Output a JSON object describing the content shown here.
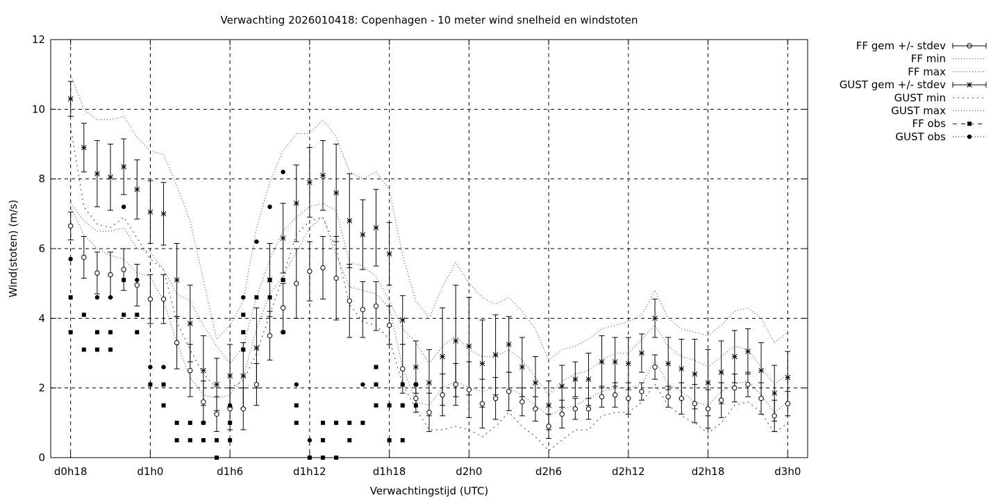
{
  "chart_data": {
    "type": "scatter",
    "title": "Verwachting 2026010418: Copenhagen - 10 meter wind snelheid en windstoten",
    "xlabel": "Verwachtingstijd (UTC)",
    "ylabel": "Wind(stoten) (m/s)",
    "ylim": [
      0,
      12
    ],
    "xlim": [
      -1.5,
      55.5
    ],
    "y_ticks": [
      0,
      2,
      4,
      6,
      8,
      10,
      12
    ],
    "x_tick_hours": [
      0,
      6,
      12,
      18,
      24,
      30,
      36,
      42,
      48,
      54
    ],
    "x_tick_labels": [
      "d0h18",
      "d1h0",
      "d1h6",
      "d1h12",
      "d1h18",
      "d2h0",
      "d2h6",
      "d2h12",
      "d2h18",
      "d3h0"
    ],
    "grid": true,
    "legend_position": "outside-top-right",
    "legend": [
      "FF gem +/- stdev",
      "FF min",
      "FF max",
      "GUST gem +/- stdev",
      "GUST min",
      "GUST max",
      "FF obs",
      "GUST obs"
    ],
    "x_hours": [
      0,
      1,
      2,
      3,
      4,
      5,
      6,
      7,
      8,
      9,
      10,
      11,
      12,
      13,
      14,
      15,
      16,
      17,
      18,
      19,
      20,
      21,
      22,
      23,
      24,
      25,
      26,
      27,
      28,
      29,
      30,
      31,
      32,
      33,
      34,
      35,
      36,
      37,
      38,
      39,
      40,
      41,
      42,
      43,
      44,
      45,
      46,
      47,
      48,
      49,
      50,
      51,
      52,
      53,
      54
    ],
    "series": [
      {
        "name": "FF gem +/- stdev",
        "mean": [
          6.65,
          5.75,
          5.3,
          5.25,
          5.4,
          4.95,
          4.55,
          4.55,
          3.3,
          2.5,
          1.6,
          1.25,
          1.4,
          1.4,
          2.1,
          3.5,
          4.3,
          5.0,
          5.35,
          5.45,
          5.15,
          4.5,
          4.25,
          4.35,
          3.8,
          2.55,
          1.7,
          1.3,
          1.8,
          2.1,
          1.95,
          1.55,
          1.7,
          1.9,
          1.6,
          1.4,
          0.9,
          1.25,
          1.4,
          1.4,
          1.75,
          1.8,
          1.7,
          1.9,
          2.6,
          1.75,
          1.7,
          1.55,
          1.4,
          1.65,
          2.0,
          2.1,
          1.7,
          1.2,
          1.55
        ],
        "stdev": [
          0.4,
          0.6,
          0.6,
          0.65,
          0.6,
          0.6,
          0.7,
          0.7,
          0.75,
          0.75,
          0.6,
          0.5,
          0.6,
          0.6,
          0.6,
          0.7,
          0.7,
          1.0,
          0.85,
          0.9,
          1.2,
          1.05,
          0.8,
          0.7,
          0.55,
          0.7,
          0.4,
          0.55,
          0.6,
          0.6,
          0.8,
          0.7,
          0.6,
          0.55,
          0.4,
          0.35,
          0.35,
          0.4,
          0.3,
          0.3,
          0.3,
          0.35,
          0.45,
          0.25,
          0.35,
          0.3,
          0.45,
          0.55,
          0.55,
          0.5,
          0.4,
          0.35,
          0.45,
          0.45,
          0.35
        ]
      },
      {
        "name": "FF min",
        "values": [
          7.2,
          6.4,
          6.0,
          5.8,
          5.7,
          5.3,
          5.2,
          4.5,
          3.3,
          2.3,
          1.8,
          1.7,
          1.8,
          2.3,
          3.7,
          4.7,
          5.2,
          5.9,
          6.6,
          6.9,
          5.8,
          4.9,
          4.8,
          4.7,
          4.3,
          2.6,
          1.6,
          1.5,
          2.0,
          2.2,
          2.0,
          1.9,
          2.0,
          2.0,
          1.8,
          1.5,
          1.2,
          1.4,
          1.5,
          1.7,
          1.9,
          2.0,
          2.0,
          2.1,
          2.8,
          2.1,
          1.9,
          1.6,
          1.5,
          1.9,
          2.1,
          2.2,
          1.8,
          1.3,
          1.6
        ]
      },
      {
        "name": "FF max",
        "values": [
          7.3,
          6.8,
          6.5,
          6.5,
          6.6,
          6.0,
          5.9,
          5.4,
          4.7,
          4.5,
          3.8,
          3.2,
          2.7,
          3.2,
          4.6,
          5.7,
          6.5,
          6.9,
          7.2,
          7.3,
          7.1,
          5.6,
          5.5,
          5.2,
          4.5,
          3.7,
          3.3,
          2.7,
          3.2,
          3.5,
          3.1,
          2.9,
          2.9,
          3.1,
          2.8,
          2.3,
          1.8,
          2.2,
          2.4,
          2.5,
          2.8,
          3.0,
          3.0,
          3.4,
          3.8,
          3.2,
          2.9,
          2.8,
          2.6,
          2.9,
          3.2,
          3.1,
          2.6,
          2.1,
          2.4
        ]
      },
      {
        "name": "GUST gem +/- stdev",
        "mean": [
          10.3,
          8.9,
          8.15,
          8.05,
          8.35,
          7.7,
          7.05,
          7.0,
          5.1,
          3.85,
          2.5,
          2.1,
          2.35,
          2.35,
          3.15,
          5.1,
          6.3,
          7.3,
          7.9,
          8.1,
          7.6,
          6.8,
          6.4,
          6.6,
          5.85,
          3.95,
          2.6,
          2.15,
          2.9,
          3.35,
          3.2,
          2.7,
          2.95,
          3.25,
          2.6,
          2.15,
          1.5,
          2.05,
          2.25,
          2.25,
          2.75,
          2.75,
          2.7,
          3.0,
          4.0,
          2.7,
          2.55,
          2.4,
          2.15,
          2.45,
          2.9,
          3.05,
          2.5,
          1.85,
          2.3
        ],
        "stdev": [
          0.5,
          0.7,
          0.95,
          0.95,
          0.8,
          0.85,
          0.9,
          0.9,
          1.05,
          1.1,
          1.0,
          0.75,
          0.9,
          0.95,
          1.15,
          1.05,
          1.0,
          1.1,
          1.0,
          1.0,
          1.4,
          1.35,
          1.0,
          1.1,
          0.9,
          0.7,
          0.75,
          0.95,
          1.4,
          1.6,
          1.4,
          1.25,
          1.15,
          0.8,
          0.85,
          0.75,
          0.7,
          0.6,
          0.5,
          0.75,
          0.75,
          0.7,
          0.75,
          0.55,
          0.55,
          0.75,
          0.85,
          1.0,
          0.95,
          0.9,
          0.75,
          0.65,
          0.8,
          0.8,
          0.75
        ]
      },
      {
        "name": "GUST min",
        "values": [
          9.5,
          7.2,
          6.7,
          6.6,
          6.9,
          6.3,
          5.7,
          5.4,
          3.9,
          3.1,
          2.4,
          2.0,
          2.0,
          2.2,
          3.0,
          4.1,
          5.2,
          6.4,
          6.8,
          6.9,
          6.0,
          4.4,
          3.9,
          3.8,
          3.4,
          2.1,
          1.4,
          0.8,
          0.8,
          0.9,
          0.8,
          0.6,
          0.9,
          1.3,
          0.9,
          0.6,
          0.2,
          0.5,
          0.8,
          0.8,
          1.2,
          1.3,
          1.3,
          1.6,
          2.1,
          1.5,
          1.2,
          1.0,
          0.7,
          1.0,
          1.5,
          1.6,
          1.3,
          0.7,
          1.0
        ]
      },
      {
        "name": "GUST max",
        "values": [
          11.0,
          10.0,
          9.7,
          9.7,
          9.8,
          9.2,
          8.8,
          8.7,
          7.8,
          6.8,
          5.1,
          3.4,
          3.8,
          4.5,
          6.6,
          7.9,
          8.8,
          9.3,
          9.3,
          9.7,
          9.2,
          8.2,
          8.0,
          8.2,
          7.7,
          5.8,
          4.5,
          4.0,
          4.9,
          5.6,
          5.0,
          4.6,
          4.4,
          4.6,
          4.2,
          3.7,
          2.8,
          3.1,
          3.2,
          3.4,
          3.7,
          3.8,
          3.9,
          4.1,
          4.8,
          4.0,
          3.7,
          3.6,
          3.5,
          3.8,
          4.2,
          4.3,
          4.0,
          3.3,
          3.6
        ]
      },
      {
        "name": "FF obs",
        "points": [
          [
            0,
            4.6
          ],
          [
            0,
            3.6
          ],
          [
            1,
            4.1
          ],
          [
            1,
            3.1
          ],
          [
            2,
            3.6
          ],
          [
            2,
            3.1
          ],
          [
            3,
            3.6
          ],
          [
            3,
            3.1
          ],
          [
            4,
            5.1
          ],
          [
            4,
            4.1
          ],
          [
            5,
            4.1
          ],
          [
            5,
            3.6
          ],
          [
            6,
            2.1
          ],
          [
            7,
            2.1
          ],
          [
            7,
            1.5
          ],
          [
            8,
            1.0
          ],
          [
            8,
            0.5
          ],
          [
            9,
            1.0
          ],
          [
            9,
            0.5
          ],
          [
            10,
            1.0
          ],
          [
            10,
            0.5
          ],
          [
            11,
            0.5
          ],
          [
            11,
            0.0
          ],
          [
            12,
            1.0
          ],
          [
            12,
            0.5
          ],
          [
            13,
            4.1
          ],
          [
            13,
            3.6
          ],
          [
            13,
            3.1
          ],
          [
            14,
            4.6
          ],
          [
            15,
            5.1
          ],
          [
            15,
            4.6
          ],
          [
            16,
            5.1
          ],
          [
            16,
            3.6
          ],
          [
            17,
            1.5
          ],
          [
            17,
            1.0
          ],
          [
            18,
            0.0
          ],
          [
            19,
            1.0
          ],
          [
            19,
            0.5
          ],
          [
            19,
            0.0
          ],
          [
            20,
            1.0
          ],
          [
            20,
            0.0
          ],
          [
            21,
            1.0
          ],
          [
            21,
            0.5
          ],
          [
            22,
            1.0
          ],
          [
            23,
            2.6
          ],
          [
            23,
            2.1
          ],
          [
            23,
            1.5
          ],
          [
            24,
            1.5
          ],
          [
            24,
            0.5
          ],
          [
            25,
            2.1
          ],
          [
            25,
            1.5
          ],
          [
            25,
            0.5
          ],
          [
            26,
            2.1
          ],
          [
            26,
            1.5
          ]
        ]
      },
      {
        "name": "GUST obs",
        "points": [
          [
            0,
            5.7
          ],
          [
            2,
            4.6
          ],
          [
            3,
            4.6
          ],
          [
            4,
            7.2
          ],
          [
            5,
            5.1
          ],
          [
            6,
            2.6
          ],
          [
            7,
            2.6
          ],
          [
            12,
            1.5
          ],
          [
            13,
            4.6
          ],
          [
            14,
            6.2
          ],
          [
            15,
            7.2
          ],
          [
            16,
            8.2
          ],
          [
            17,
            2.1
          ],
          [
            18,
            0.5
          ],
          [
            22,
            2.1
          ],
          [
            25,
            1.5
          ]
        ]
      }
    ]
  }
}
